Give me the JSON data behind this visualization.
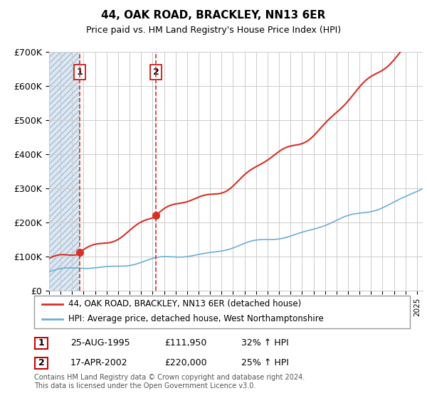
{
  "title": "44, OAK ROAD, BRACKLEY, NN13 6ER",
  "subtitle": "Price paid vs. HM Land Registry's House Price Index (HPI)",
  "hpi_line_color": "#6baed6",
  "price_line_color": "#d73027",
  "vline_color": "#d73027",
  "ylim": [
    0,
    700000
  ],
  "yticks": [
    0,
    100000,
    200000,
    300000,
    400000,
    500000,
    600000,
    700000
  ],
  "ytick_labels": [
    "£0",
    "£100K",
    "£200K",
    "£300K",
    "£400K",
    "£500K",
    "£600K",
    "£700K"
  ],
  "xlim_start": 1993.0,
  "xlim_end": 2025.5,
  "transactions": [
    {
      "year": 1995.65,
      "price": 111950,
      "label": "1"
    },
    {
      "year": 2002.29,
      "price": 220000,
      "label": "2"
    }
  ],
  "legend_entries": [
    {
      "label": "44, OAK ROAD, BRACKLEY, NN13 6ER (detached house)",
      "color": "#d73027"
    },
    {
      "label": "HPI: Average price, detached house, West Northamptonshire",
      "color": "#6baed6"
    }
  ],
  "footnote": "Contains HM Land Registry data © Crown copyright and database right 2024.\nThis data is licensed under the Open Government Licence v3.0.",
  "table_rows": [
    {
      "num": "1",
      "date": "25-AUG-1995",
      "price": "£111,950",
      "change": "32% ↑ HPI"
    },
    {
      "num": "2",
      "date": "17-APR-2002",
      "price": "£220,000",
      "change": "25% ↑ HPI"
    }
  ]
}
